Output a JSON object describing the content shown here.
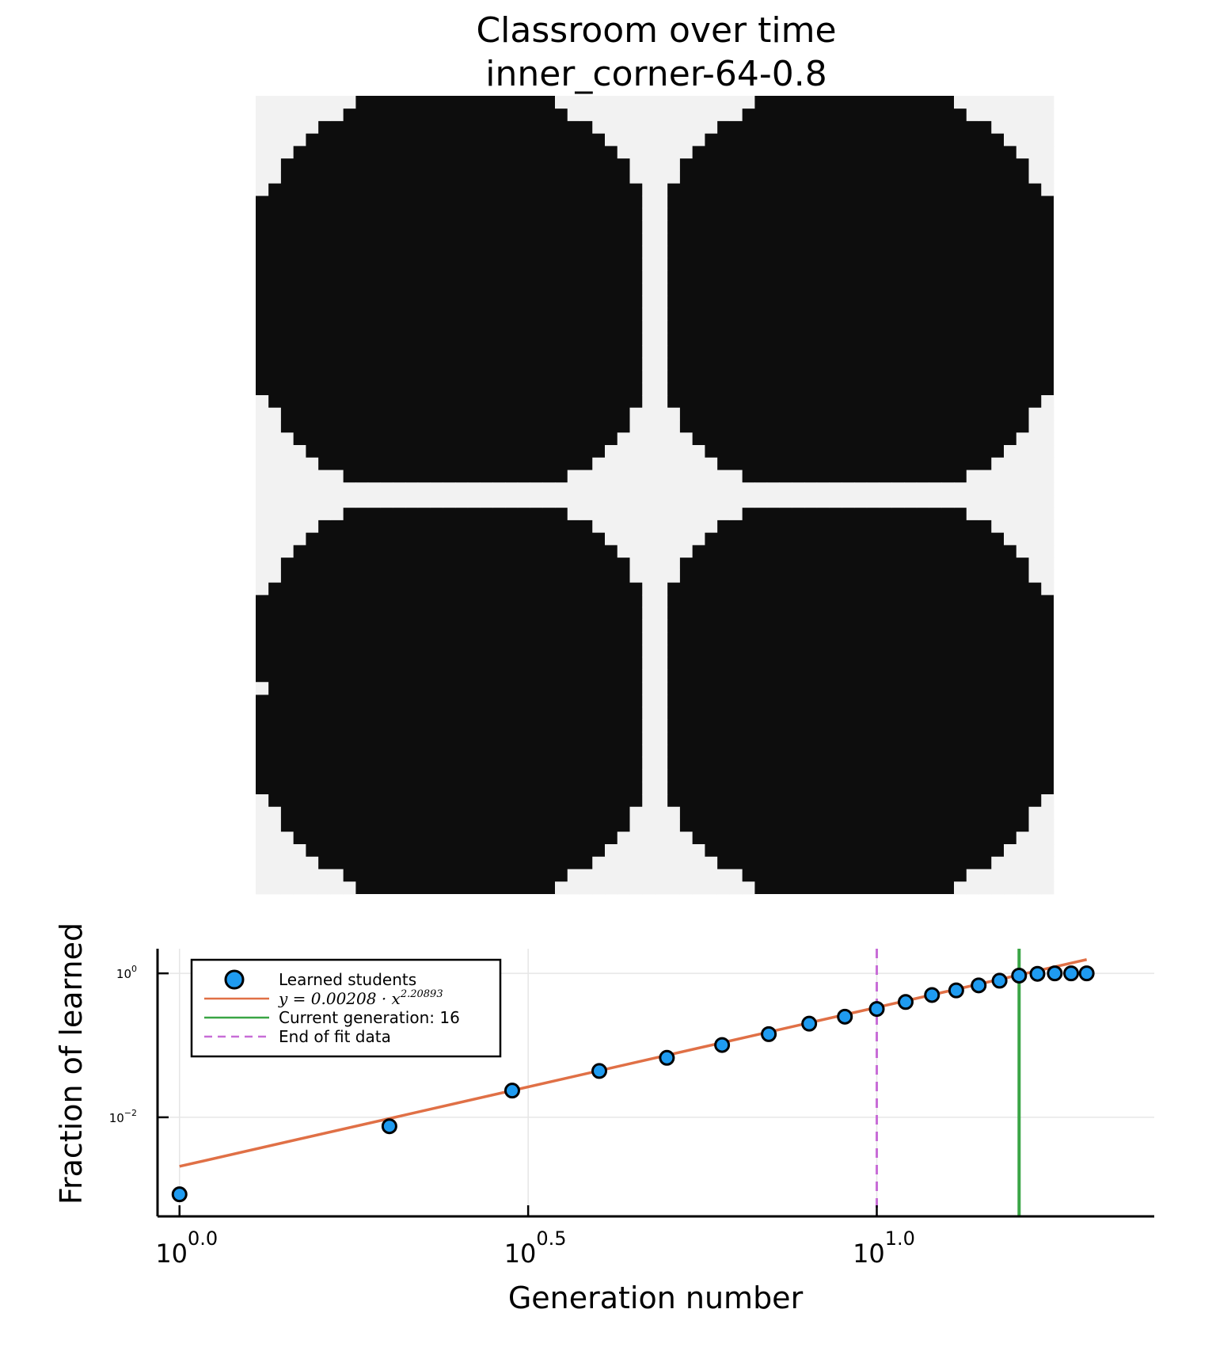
{
  "figure": {
    "title_line1": "Classroom over time",
    "title_line2": "inner_corner-64-0.8"
  },
  "colors": {
    "learned_cell": "#0d0d0d",
    "empty_cell": "#f2f2f2",
    "scatter": "#1f9bf0",
    "fit_line": "#e07046",
    "current_gen_line": "#3aa545",
    "end_fit_line": "#c86dd7"
  },
  "grid": {
    "size": 64,
    "description_of_cells": "black = learned, light = not learned"
  },
  "chart_data": {
    "type": "scatter",
    "xlabel": "Generation number",
    "ylabel": "Fraction of learned",
    "xscale": "log10",
    "yscale": "log10",
    "xlim": [
      0.93,
      25
    ],
    "ylim": [
      0.00042,
      2.2
    ],
    "x_ticks": [
      {
        "value": 1,
        "base": "10",
        "exp": "0.0"
      },
      {
        "value": 3.1623,
        "base": "10",
        "exp": "0.5"
      },
      {
        "value": 10,
        "base": "10",
        "exp": "1.0"
      }
    ],
    "y_ticks": [
      {
        "value": 1,
        "base": "10",
        "exp": "0"
      },
      {
        "value": 0.01,
        "base": "10",
        "exp": "−2"
      }
    ],
    "grid": true,
    "legend_position": "top-left",
    "series": [
      {
        "name": "Learned students",
        "kind": "scatter",
        "x": [
          1,
          2,
          3,
          4,
          5,
          6,
          7,
          8,
          9,
          10,
          11,
          12,
          13,
          14,
          15,
          16,
          17,
          18,
          19,
          20
        ],
        "y": [
          0.00085,
          0.0075,
          0.0235,
          0.044,
          0.067,
          0.101,
          0.143,
          0.2,
          0.25,
          0.32,
          0.4,
          0.5,
          0.58,
          0.68,
          0.79,
          0.93,
          0.985,
          1.0,
          1.0,
          1.0
        ]
      },
      {
        "name": "y = 0.00208 · x^2.20893",
        "name_main": "y = 0.00208 · x",
        "name_exp": "2.20893",
        "kind": "line",
        "coefficient": 0.00208,
        "exponent": 2.20893,
        "x_range": [
          1,
          20
        ]
      },
      {
        "name": "Current generation: 16",
        "kind": "vline",
        "x": 16
      },
      {
        "name": "End of fit data",
        "kind": "vline-dashed",
        "x": 10
      }
    ]
  }
}
